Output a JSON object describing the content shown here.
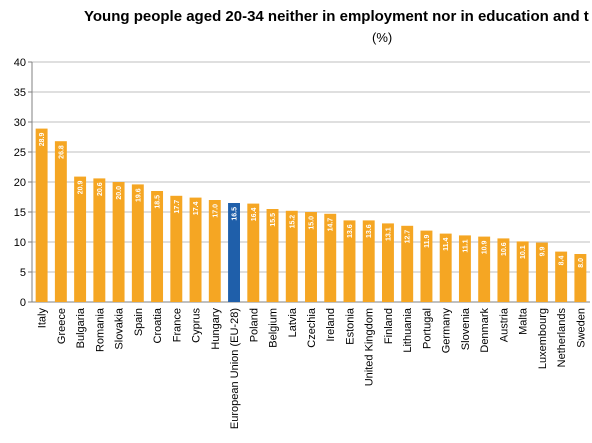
{
  "chart_data": {
    "type": "bar",
    "title": "Young people aged 20-34 neither in employment nor in education and t",
    "subtitle": "(%)",
    "categories": [
      "Italy",
      "Greece",
      "Bulgaria",
      "Romania",
      "Slovakia",
      "Spain",
      "Croatia",
      "France",
      "Cyprus",
      "Hungary",
      "European Union (EU-28)",
      "Poland",
      "Belgium",
      "Latvia",
      "Czechia",
      "Ireland",
      "Estonia",
      "United Kingdom",
      "Finland",
      "Lithuania",
      "Portugal",
      "Germany",
      "Slovenia",
      "Denmark",
      "Austria",
      "Malta",
      "Luxembourg",
      "Netherlands",
      "Sweden"
    ],
    "values": [
      28.9,
      26.8,
      20.9,
      20.6,
      20.0,
      19.6,
      18.5,
      17.7,
      17.4,
      17.0,
      16.5,
      16.4,
      15.5,
      15.2,
      15.0,
      14.7,
      13.6,
      13.6,
      13.1,
      12.7,
      11.9,
      11.4,
      11.1,
      10.9,
      10.6,
      10.1,
      9.9,
      8.4,
      8.0
    ],
    "value_labels": [
      "28.9",
      "26.8",
      "20.9",
      "20.6",
      "20.0",
      "19.6",
      "18.5",
      "17.7",
      "17.4",
      "17.0",
      "16.5",
      "16.4",
      "15.5",
      "15.2",
      "15.0",
      "14.7",
      "13.6",
      "13.6",
      "13.1",
      "12.7",
      "11.9",
      "11.4",
      "11.1",
      "10.9",
      "10.6",
      "10.1",
      "9.9",
      "8.4",
      "8.0"
    ],
    "ylim": [
      0,
      40
    ],
    "yticks": [
      0,
      5,
      10,
      15,
      20,
      25,
      30,
      35,
      40
    ],
    "grid": true,
    "highlight_category": "European Union (EU-28)",
    "colors": {
      "bar": "#F5A623",
      "highlight": "#1F5FAA",
      "grid": "#BFBFBF",
      "axis": "#808080"
    }
  }
}
